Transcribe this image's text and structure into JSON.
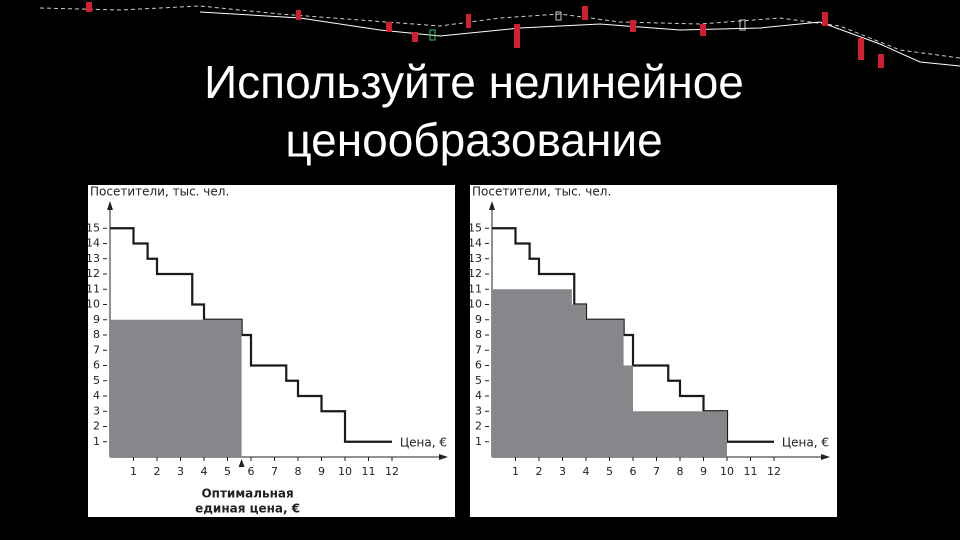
{
  "slide_title": [
    "Используйте нелинейное",
    "ценообразование"
  ],
  "chart_data": [
    {
      "type": "step",
      "y_label": "Посетители, тыс. чел.",
      "x_label": "Цена, €",
      "annotation": [
        "Оптимальная",
        "единая цена, €"
      ],
      "xlim": [
        0,
        14
      ],
      "ylim": [
        0,
        16
      ],
      "xticks": [
        1,
        2,
        3,
        4,
        5,
        6,
        7,
        8,
        9,
        10,
        11,
        12
      ],
      "yticks": [
        1,
        2,
        3,
        4,
        5,
        6,
        7,
        8,
        9,
        10,
        11,
        12,
        13,
        14,
        15
      ],
      "line_color": "#1a1a1a",
      "fill_color": "#87878b",
      "demand": {
        "x": [
          0,
          1,
          1,
          1.6,
          1.6,
          2,
          2,
          3.5,
          3.5,
          4,
          4,
          5.6,
          5.6,
          6,
          6,
          7.5,
          7.5,
          8,
          8,
          9,
          9,
          10,
          10,
          12
        ],
        "y": [
          15,
          15,
          14,
          14,
          13,
          13,
          12,
          12,
          10,
          10,
          9,
          9,
          8,
          8,
          6,
          6,
          5,
          5,
          4,
          4,
          3,
          3,
          1,
          1
        ]
      },
      "revenue_area": {
        "x": [
          0,
          5.6
        ],
        "y": [
          9,
          9
        ]
      }
    },
    {
      "type": "step",
      "y_label": "Посетители, тыс. чел.",
      "x_label": "Цена, €",
      "xlim": [
        0,
        14
      ],
      "ylim": [
        0,
        16
      ],
      "xticks": [
        1,
        2,
        3,
        4,
        5,
        6,
        7,
        8,
        9,
        10,
        11,
        12
      ],
      "yticks": [
        1,
        2,
        3,
        4,
        5,
        6,
        7,
        8,
        9,
        10,
        11,
        12,
        13,
        14,
        15
      ],
      "line_color": "#1a1a1a",
      "fill_color": "#87878b",
      "demand": {
        "x": [
          0,
          1,
          1,
          1.6,
          1.6,
          2,
          2,
          3.5,
          3.5,
          4,
          4,
          5.6,
          5.6,
          6,
          6,
          7.5,
          7.5,
          8,
          8,
          9,
          9,
          10,
          10,
          12
        ],
        "y": [
          15,
          15,
          14,
          14,
          13,
          13,
          12,
          12,
          10,
          10,
          9,
          9,
          8,
          8,
          6,
          6,
          5,
          5,
          4,
          4,
          3,
          3,
          1,
          1
        ]
      },
      "revenue_area": {
        "x": [
          0,
          3.4,
          3.4,
          4,
          4,
          5.6,
          5.6,
          6,
          6,
          10
        ],
        "y": [
          11,
          11,
          10,
          10,
          9,
          9,
          6,
          6,
          3,
          3
        ]
      }
    }
  ]
}
